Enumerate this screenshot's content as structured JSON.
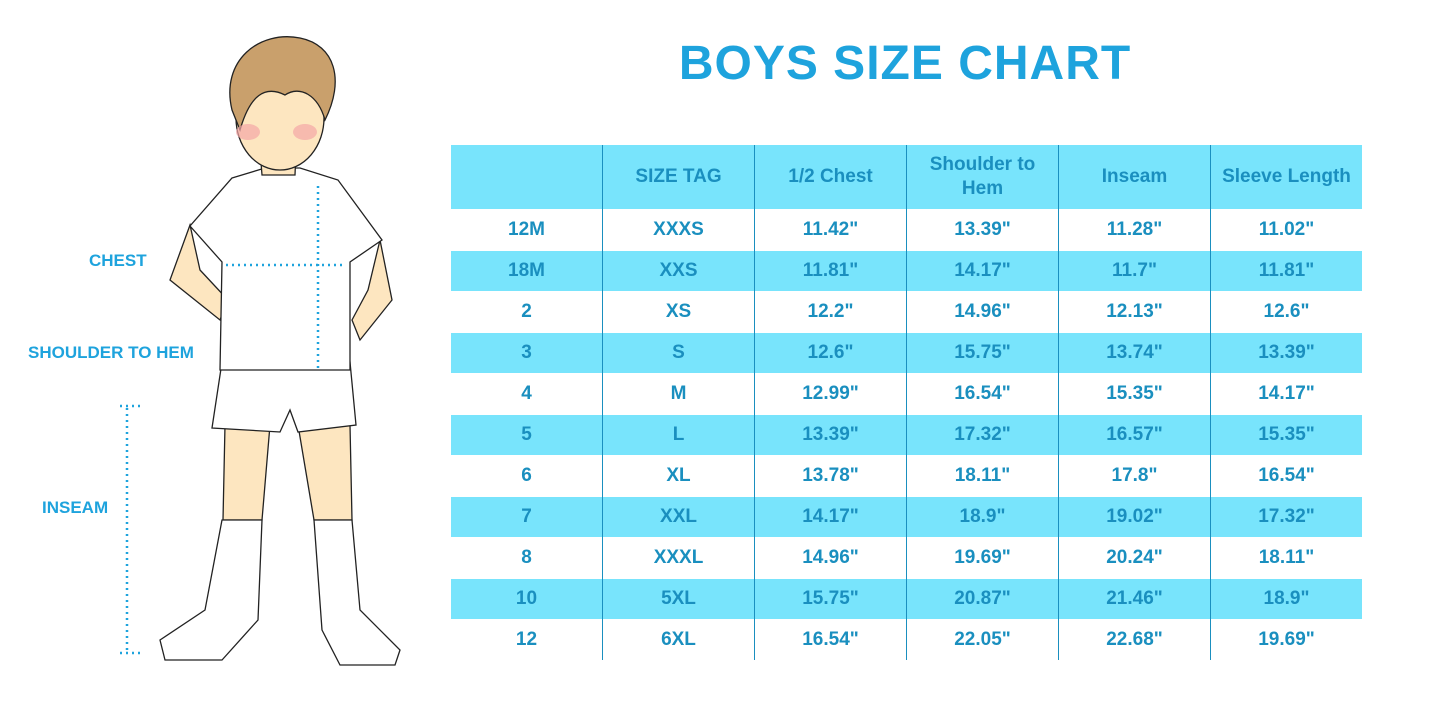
{
  "title": "BOYS SIZE CHART",
  "figure_labels": {
    "chest": "CHEST",
    "shoulder_to_hem": "SHOULDER TO HEM",
    "inseam": "INSEAM"
  },
  "colors": {
    "accent": "#1ea3dd",
    "row_highlight": "#78e4fc",
    "text": "#1a8fbf"
  },
  "chart_data": {
    "type": "table",
    "title": "BOYS SIZE CHART",
    "columns": [
      "",
      "SIZE TAG",
      "1/2 Chest",
      "Shoulder to Hem",
      "Inseam",
      "Sleeve Length"
    ],
    "rows": [
      [
        "12M",
        "XXXS",
        "11.42\"",
        "13.39\"",
        "11.28\"",
        "11.02\""
      ],
      [
        "18M",
        "XXS",
        "11.81\"",
        "14.17\"",
        "11.7\"",
        "11.81\""
      ],
      [
        "2",
        "XS",
        "12.2\"",
        "14.96\"",
        "12.13\"",
        "12.6\""
      ],
      [
        "3",
        "S",
        "12.6\"",
        "15.75\"",
        "13.74\"",
        "13.39\""
      ],
      [
        "4",
        "M",
        "12.99\"",
        "16.54\"",
        "15.35\"",
        "14.17\""
      ],
      [
        "5",
        "L",
        "13.39\"",
        "17.32\"",
        "16.57\"",
        "15.35\""
      ],
      [
        "6",
        "XL",
        "13.78\"",
        "18.11\"",
        "17.8\"",
        "16.54\""
      ],
      [
        "7",
        "XXL",
        "14.17\"",
        "18.9\"",
        "19.02\"",
        "17.32\""
      ],
      [
        "8",
        "XXXL",
        "14.96\"",
        "19.69\"",
        "20.24\"",
        "18.11\""
      ],
      [
        "10",
        "5XL",
        "15.75\"",
        "20.87\"",
        "21.46\"",
        "18.9\""
      ],
      [
        "12",
        "6XL",
        "16.54\"",
        "22.05\"",
        "22.68\"",
        "19.69\""
      ]
    ]
  }
}
